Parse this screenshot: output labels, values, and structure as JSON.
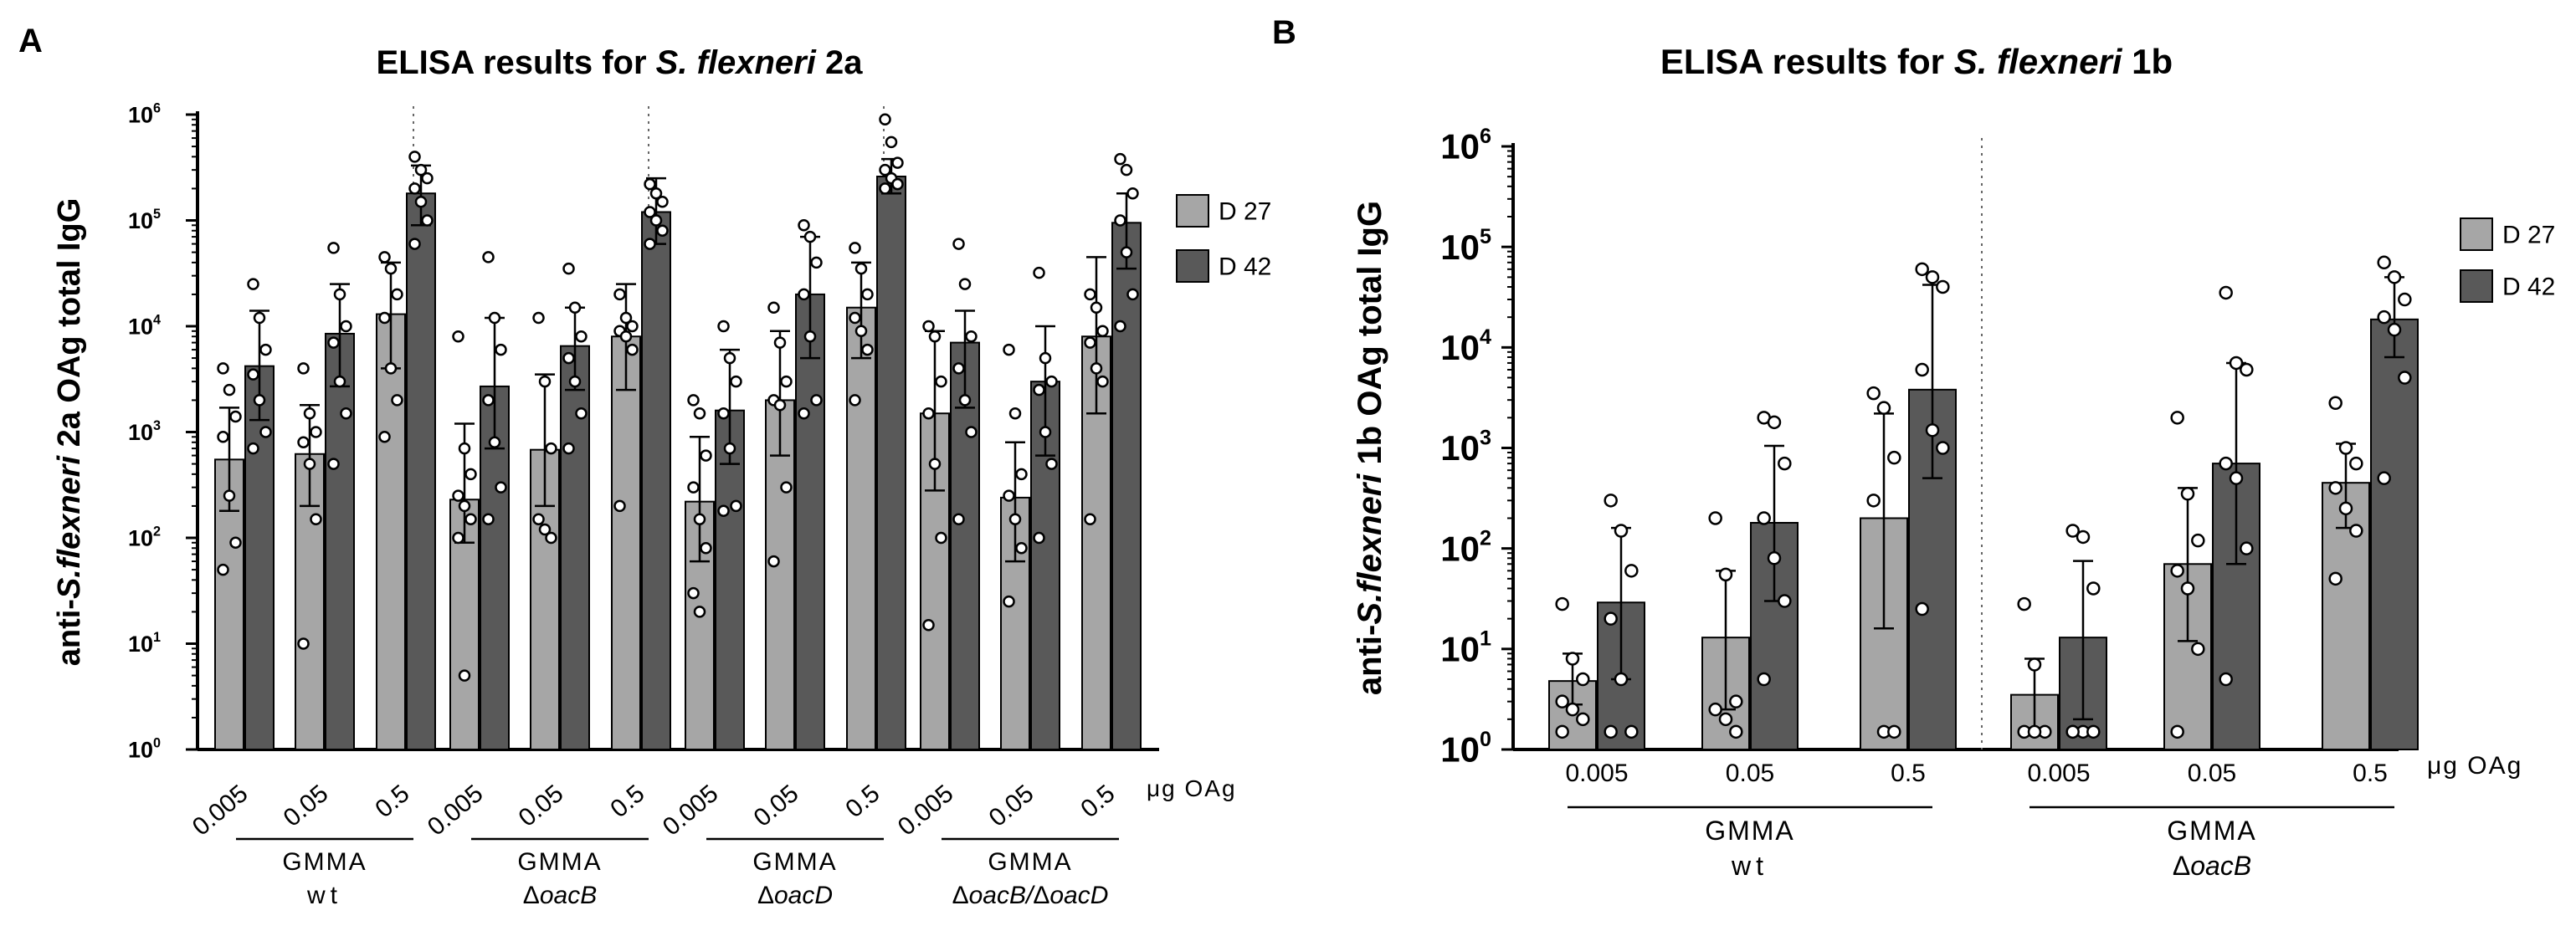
{
  "chart_data": [
    {
      "panel": "A",
      "type": "bar",
      "title_parts": [
        "ELISA results for ",
        "S. flexneri",
        " 2a"
      ],
      "ylabel_parts": [
        "anti-",
        "S.flexneri",
        " 2a OAg total IgG"
      ],
      "yscale": "log",
      "ylim": [
        1,
        1000000
      ],
      "yticks": [
        "10^0",
        "10^1",
        "10^2",
        "10^3",
        "10^4",
        "10^5",
        "10^6"
      ],
      "x_unit": "μg OAg",
      "doses": [
        "0.005",
        "0.05",
        "0.5"
      ],
      "legend": [
        "D 27",
        "D 42"
      ],
      "legend_position": "right",
      "colors": {
        "D 27": "#a6a6a6",
        "D 42": "#595959"
      },
      "groups": [
        {
          "name": "GMMA",
          "sub": "wt",
          "D 27": {
            "mean": [
              550,
              620,
              13000
            ],
            "sd": [
              [
                180,
                1700
              ],
              [
                200,
                1800
              ],
              [
                4000,
                40000
              ]
            ],
            "points": [
              [
                4000,
                2500,
                1400,
                900,
                250,
                90,
                50
              ],
              [
                4000,
                1500,
                1000,
                800,
                500,
                150,
                10
              ],
              [
                45000,
                35000,
                20000,
                12000,
                4000,
                2000,
                900
              ]
            ]
          },
          "D 42": {
            "mean": [
              4200,
              8500,
              180000
            ],
            "sd": [
              [
                1300,
                14000
              ],
              [
                2700,
                25000
              ],
              [
                90000,
                330000
              ]
            ],
            "points": [
              [
                25000,
                12000,
                6000,
                3500,
                2000,
                1000,
                700
              ],
              [
                55000,
                20000,
                10000,
                7000,
                3000,
                1500,
                500
              ],
              [
                400000,
                300000,
                250000,
                200000,
                150000,
                100000,
                60000
              ]
            ]
          }
        },
        {
          "name": "GMMA",
          "sub_prefix": "Δ",
          "sub": "oacB",
          "D 27": {
            "mean": [
              230,
              680,
              8000
            ],
            "sd": [
              [
                90,
                1200
              ],
              [
                200,
                3500
              ],
              [
                2500,
                25000
              ]
            ],
            "points": [
              [
                8000,
                700,
                400,
                250,
                200,
                150,
                100,
                5
              ],
              [
                12000,
                3000,
                700,
                150,
                120,
                100
              ],
              [
                20000,
                12000,
                10000,
                9000,
                8000,
                6000,
                200
              ]
            ]
          },
          "D 42": {
            "mean": [
              2700,
              6500,
              120000
            ],
            "sd": [
              [
                700,
                12000
              ],
              [
                2500,
                15000
              ],
              [
                60000,
                250000
              ]
            ],
            "points": [
              [
                45000,
                12000,
                6000,
                2000,
                800,
                300,
                150
              ],
              [
                35000,
                15000,
                8000,
                5000,
                3000,
                1500,
                700
              ],
              [
                220000,
                180000,
                150000,
                120000,
                100000,
                80000,
                60000
              ]
            ]
          }
        },
        {
          "name": "GMMA",
          "sub_prefix": "Δ",
          "sub": "oacD",
          "D 27": {
            "mean": [
              220,
              2000,
              15000
            ],
            "sd": [
              [
                60,
                900
              ],
              [
                600,
                9000
              ],
              [
                5000,
                40000
              ]
            ],
            "points": [
              [
                2000,
                1500,
                600,
                300,
                150,
                80,
                30,
                20
              ],
              [
                15000,
                7000,
                3000,
                2000,
                1800,
                300,
                60
              ],
              [
                55000,
                35000,
                20000,
                12000,
                9000,
                6000,
                2000
              ]
            ]
          },
          "D 42": {
            "mean": [
              1600,
              20000,
              260000
            ],
            "sd": [
              [
                500,
                6000
              ],
              [
                5000,
                70000
              ],
              [
                180000,
                380000
              ]
            ],
            "points": [
              [
                10000,
                5000,
                3000,
                1500,
                700,
                200,
                180
              ],
              [
                90000,
                70000,
                40000,
                20000,
                8000,
                2000,
                1500
              ],
              [
                900000,
                550000,
                350000,
                300000,
                250000,
                220000,
                200000
              ]
            ]
          }
        },
        {
          "name": "GMMA",
          "sub_prefix": "Δ",
          "sub": "oacB/",
          "sub_prefix2": "Δ",
          "sub2": "oacD",
          "D 27": {
            "mean": [
              1500,
              240,
              8000
            ],
            "sd": [
              [
                280,
                9000
              ],
              [
                60,
                800
              ],
              [
                1500,
                45000
              ]
            ],
            "points": [
              [
                10000,
                8000,
                3000,
                1500,
                500,
                100,
                15
              ],
              [
                6000,
                1500,
                400,
                250,
                150,
                80,
                25
              ],
              [
                20000,
                15000,
                9000,
                7000,
                4000,
                3000,
                150
              ]
            ]
          },
          "D 42": {
            "mean": [
              7000,
              3000,
              95000
            ],
            "sd": [
              [
                1700,
                14000
              ],
              [
                600,
                10000
              ],
              [
                35000,
                180000
              ]
            ],
            "points": [
              [
                60000,
                25000,
                8000,
                4000,
                2000,
                1000,
                150
              ],
              [
                32000,
                5000,
                3000,
                2500,
                1000,
                500,
                100
              ],
              [
                380000,
                300000,
                180000,
                100000,
                50000,
                20000,
                10000
              ]
            ]
          }
        }
      ]
    },
    {
      "panel": "B",
      "type": "bar",
      "title_parts": [
        "ELISA results for ",
        "S. flexneri",
        " 1b"
      ],
      "ylabel_parts": [
        "anti-",
        "S.flexneri",
        " 1b OAg total IgG"
      ],
      "yscale": "log",
      "ylim": [
        1,
        1000000
      ],
      "yticks": [
        "10^0",
        "10^1",
        "10^2",
        "10^3",
        "10^4",
        "10^5",
        "10^6"
      ],
      "x_unit": "μg OAg",
      "doses": [
        "0.005",
        "0.05",
        "0.5"
      ],
      "legend": [
        "D 27",
        "D 42"
      ],
      "legend_position": "right",
      "colors": {
        "D 27": "#a6a6a6",
        "D 42": "#595959"
      },
      "groups": [
        {
          "name": "GMMA",
          "sub": "wt",
          "D 27": {
            "mean": [
              4.8,
              13,
              200
            ],
            "sd": [
              [
                2.8,
                9
              ],
              [
                2.5,
                60
              ],
              [
                16,
                2200
              ]
            ],
            "points": [
              [
                28,
                8,
                5,
                3,
                2.5,
                2,
                1.5
              ],
              [
                200,
                55,
                3,
                2.5,
                2,
                1.5
              ],
              [
                3500,
                2500,
                800,
                300,
                1.5,
                1.5
              ]
            ]
          },
          "D 42": {
            "mean": [
              29,
              180,
              3800
            ],
            "sd": [
              [
                5,
                160
              ],
              [
                30,
                1050
              ],
              [
                500,
                42000
              ]
            ],
            "points": [
              [
                300,
                150,
                60,
                20,
                5,
                1.5,
                1.5
              ],
              [
                2000,
                1800,
                700,
                200,
                80,
                30,
                5
              ],
              [
                60000,
                50000,
                40000,
                6000,
                1500,
                1000,
                25
              ]
            ]
          }
        },
        {
          "name": "GMMA",
          "sub_prefix": "Δ",
          "sub": "oacB",
          "D 27": {
            "mean": [
              3.5,
              70,
              450
            ],
            "sd": [
              [
                1.5,
                8
              ],
              [
                12,
                400
              ],
              [
                160,
                1100
              ]
            ],
            "points": [
              [
                28,
                7,
                1.5,
                1.5,
                1.5
              ],
              [
                2000,
                350,
                120,
                60,
                40,
                10,
                1.5
              ],
              [
                2800,
                1000,
                700,
                400,
                250,
                150,
                50
              ]
            ]
          },
          "D 42": {
            "mean": [
              13,
              700,
              19000
            ],
            "sd": [
              [
                2,
                75
              ],
              [
                70,
                7000
              ],
              [
                8000,
                50000
              ]
            ],
            "points": [
              [
                150,
                130,
                40,
                1.5,
                1.5,
                1.5,
                1.5
              ],
              [
                35000,
                7000,
                6000,
                700,
                500,
                100,
                5
              ],
              [
                70000,
                50000,
                30000,
                20000,
                15000,
                5000,
                500
              ]
            ]
          }
        }
      ]
    }
  ]
}
